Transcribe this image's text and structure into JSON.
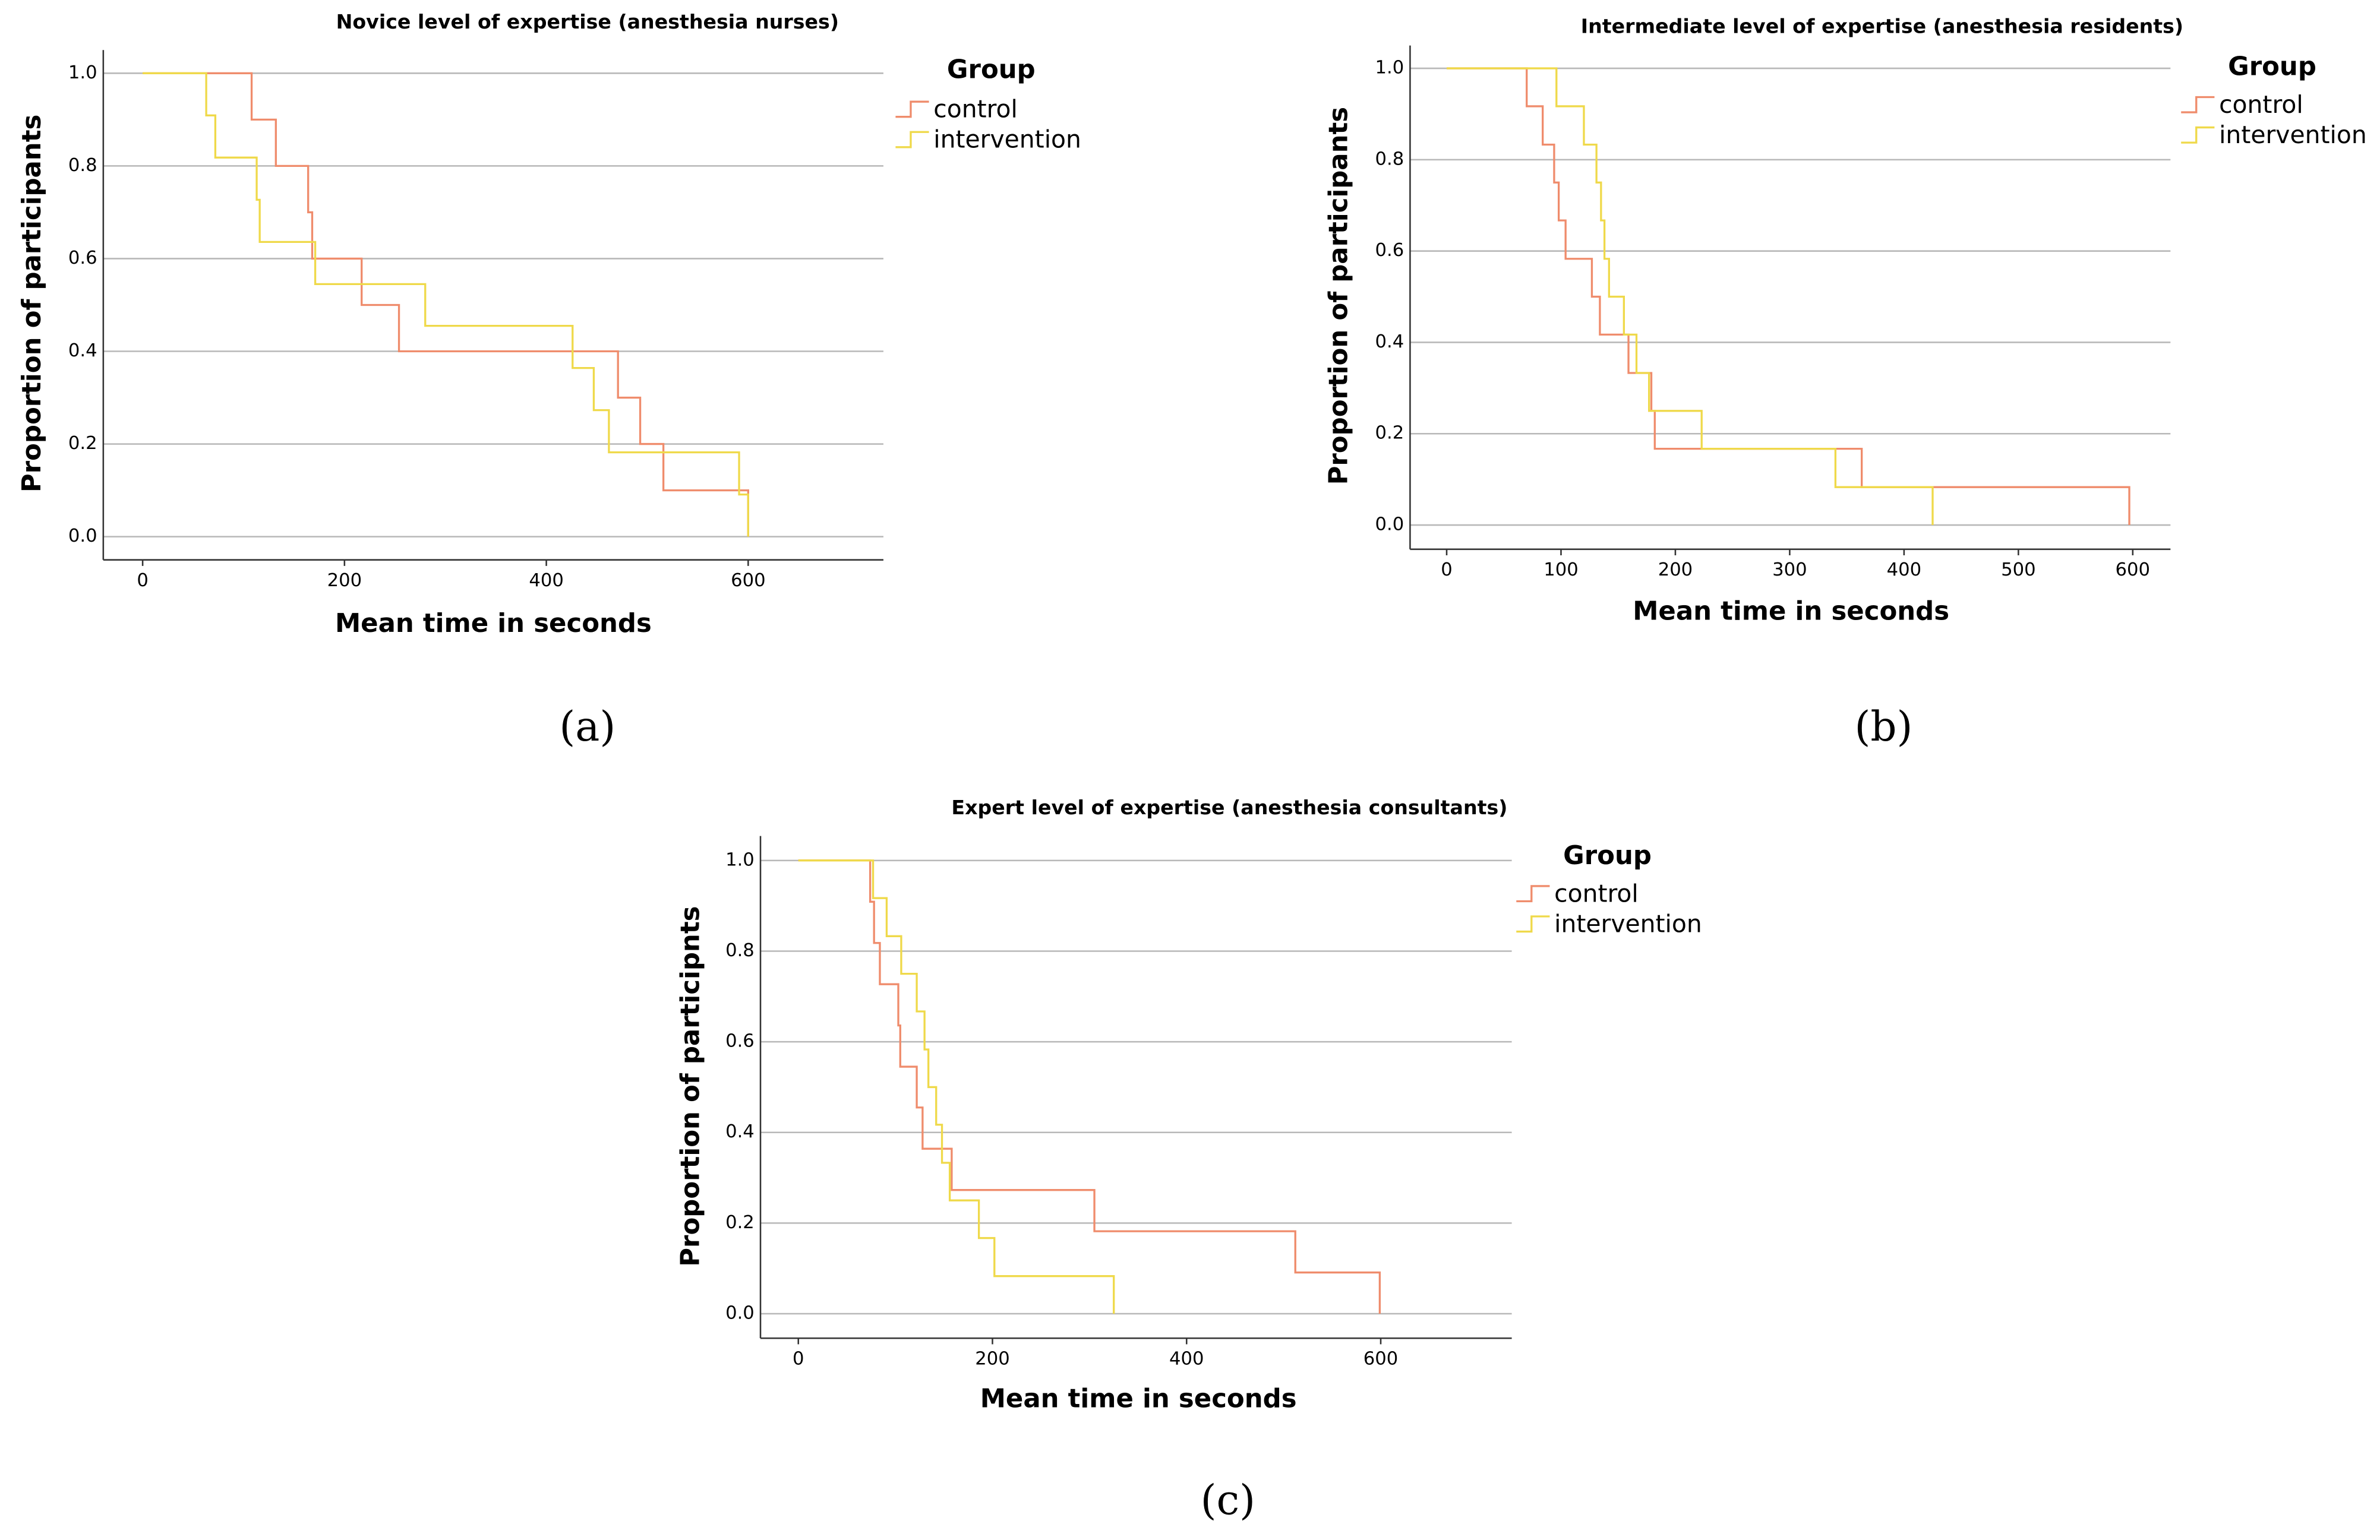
{
  "chart_data": [
    {
      "type": "step",
      "title": "Novice level of expertise (anesthesia nurses)",
      "panel_label": "(a)",
      "x_label": "Mean time in seconds",
      "y_label": "Proportion of participants",
      "legend_title": "Group",
      "xlim": [
        -39,
        734
      ],
      "xticks": [
        0,
        200,
        400,
        600
      ],
      "ylim": [
        -0.05,
        1.05
      ],
      "yticks": [
        {
          "value": 0,
          "label": "0.0"
        },
        0.2,
        0.4,
        0.6,
        0.8,
        {
          "value": 1,
          "label": "1.0"
        }
      ],
      "grid": true,
      "series": [
        {
          "name": "control",
          "color": "#ef8c6c",
          "x": [
            0,
            108,
            132,
            164,
            168,
            217,
            254,
            471,
            493,
            516,
            600
          ],
          "values": [
            1.0,
            0.9,
            0.8,
            0.7,
            0.6,
            0.5,
            0.4,
            0.3,
            0.2,
            0.1,
            0
          ]
        },
        {
          "name": "intervention",
          "color": "#efd94a",
          "x": [
            0,
            63,
            72,
            113,
            116,
            171,
            280,
            426,
            447,
            462,
            591,
            600
          ],
          "values": [
            1.0,
            0.909,
            0.818,
            0.727,
            0.636,
            0.545,
            0.455,
            0.364,
            0.273,
            0.182,
            0.091,
            0
          ]
        }
      ]
    },
    {
      "type": "step",
      "title": "Intermediate level of expertise (anesthesia residents)",
      "panel_label": "(b)",
      "x_label": "Mean time in seconds",
      "y_label": "Proportion of participants",
      "legend_title": "Group",
      "xlim": [
        -32,
        633
      ],
      "xticks": [
        0,
        100,
        200,
        300,
        400,
        500,
        600
      ],
      "ylim": [
        -0.053,
        1.05
      ],
      "yticks": [
        {
          "value": 0,
          "label": "0.0"
        },
        0.2,
        0.4,
        0.6,
        0.8,
        {
          "value": 1,
          "label": "1.0"
        }
      ],
      "grid": true,
      "series": [
        {
          "name": "control",
          "color": "#ef8c6c",
          "x": [
            0,
            70,
            84,
            94,
            98,
            104,
            127,
            134,
            159,
            179,
            182,
            363,
            597
          ],
          "values": [
            1.0,
            0.917,
            0.833,
            0.75,
            0.667,
            0.583,
            0.5,
            0.417,
            0.333,
            0.25,
            0.167,
            0.083,
            0
          ]
        },
        {
          "name": "intervention",
          "color": "#efd94a",
          "x": [
            0,
            96,
            120,
            131,
            135,
            138,
            142,
            155,
            166,
            177,
            223,
            340,
            425
          ],
          "values": [
            1.0,
            0.917,
            0.833,
            0.75,
            0.667,
            0.583,
            0.5,
            0.417,
            0.333,
            0.25,
            0.167,
            0.083,
            0
          ]
        }
      ]
    },
    {
      "type": "step",
      "title": "Expert level of expertise (anesthesia consultants)",
      "panel_label": "(c)",
      "x_label": "Mean time in seconds",
      "y_label": "Proportion of participnts",
      "legend_title": "Group",
      "xlim": [
        -39,
        735
      ],
      "xticks": [
        0,
        200,
        400,
        600
      ],
      "ylim": [
        -0.054,
        1.054
      ],
      "yticks": [
        {
          "value": 0,
          "label": "0.0"
        },
        0.2,
        0.4,
        0.6,
        0.8,
        {
          "value": 1,
          "label": "1.0"
        }
      ],
      "grid": true,
      "series": [
        {
          "name": "control",
          "color": "#ef8c6c",
          "x": [
            0,
            74,
            78,
            84,
            103,
            105,
            122,
            128,
            158,
            305,
            512,
            599
          ],
          "values": [
            1.0,
            0.909,
            0.818,
            0.727,
            0.636,
            0.545,
            0.455,
            0.364,
            0.273,
            0.182,
            0.091,
            0
          ]
        },
        {
          "name": "intervention",
          "color": "#efd94a",
          "x": [
            0,
            77,
            91,
            106,
            122,
            130,
            134,
            142,
            148,
            156,
            186,
            202,
            325
          ],
          "values": [
            1.0,
            0.917,
            0.833,
            0.75,
            0.667,
            0.583,
            0.5,
            0.417,
            0.333,
            0.25,
            0.167,
            0.083,
            0
          ]
        }
      ]
    }
  ]
}
